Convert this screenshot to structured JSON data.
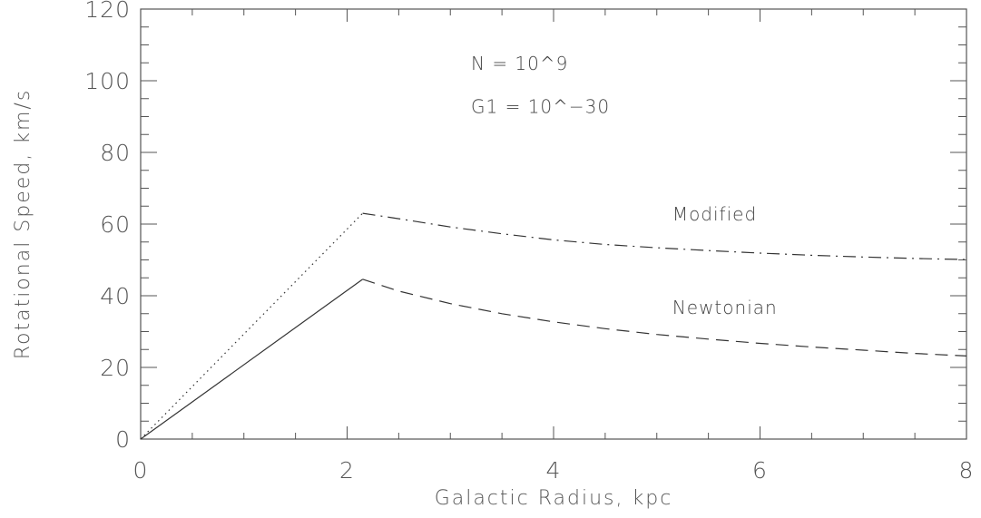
{
  "chart_data": {
    "type": "line",
    "title": "",
    "xlabel": "Galactic Radius, kpc",
    "ylabel": "Rotational Speed, km/s",
    "xlim": [
      0,
      8
    ],
    "ylim": [
      0,
      120
    ],
    "xticks": [
      0,
      2,
      4,
      6,
      8
    ],
    "yticks": [
      0,
      20,
      40,
      60,
      80,
      100,
      120
    ],
    "x_minor_step": 0.5,
    "y_minor_step": 5,
    "grid": false,
    "series": [
      {
        "name": "Modified",
        "style": "dash-dot",
        "inner_style": "dotted",
        "x": [
          0,
          2.15,
          2.5,
          3,
          3.5,
          4,
          4.5,
          5,
          5.5,
          6,
          6.5,
          7,
          7.5,
          8
        ],
        "y": [
          0,
          63,
          61.5,
          59.2,
          57.3,
          55.6,
          54.3,
          53.4,
          52.6,
          51.9,
          51.3,
          50.8,
          50.4,
          50.1
        ]
      },
      {
        "name": "Newtonian",
        "style": "dashed",
        "inner_style": "solid",
        "x": [
          0,
          2.15,
          2.5,
          3,
          3.5,
          4,
          4.5,
          5,
          5.5,
          6,
          6.5,
          7,
          7.5,
          8
        ],
        "y": [
          0,
          44.6,
          41.3,
          37.8,
          35,
          32.7,
          30.8,
          29.2,
          27.9,
          26.7,
          25.7,
          24.8,
          23.9,
          23.2
        ]
      }
    ],
    "annotations": [
      {
        "text": "N  =  10^9",
        "x": 3.2,
        "y": 103
      },
      {
        "text": "G1  =  10^−30",
        "x": 3.2,
        "y": 91
      },
      {
        "text": "Modified",
        "x": 5.15,
        "y": 61
      },
      {
        "text": "Newtonian",
        "x": 5.15,
        "y": 35
      }
    ]
  }
}
